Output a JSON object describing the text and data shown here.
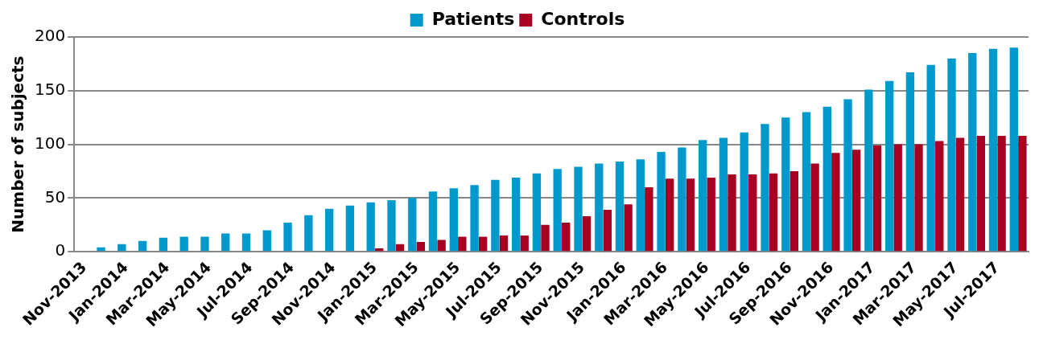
{
  "chart_data": {
    "type": "bar",
    "ylabel": "Number of subjects",
    "categories": [
      "Nov-2013",
      null,
      "Jan-2014",
      null,
      "Mar-2014",
      null,
      "May-2014",
      null,
      "Jul-2014",
      null,
      "Sep-2014",
      null,
      "Nov-2014",
      null,
      "Jan-2015",
      null,
      "Mar-2015",
      null,
      "May-2015",
      null,
      "Jul-2015",
      null,
      "Sep-2015",
      null,
      "Nov-2015",
      null,
      "Jan-2016",
      null,
      "Mar-2016",
      null,
      "May-2016",
      null,
      "Jul-2016",
      null,
      "Sep-2016",
      null,
      "Nov-2016",
      null,
      "Jan-2017",
      null,
      "Mar-2017",
      null,
      "May-2017",
      null,
      "Jul-2017",
      null
    ],
    "series": [
      {
        "name": "Patients",
        "color": "#0099cc",
        "values": [
          null,
          4,
          7,
          10,
          13,
          14,
          14,
          17,
          17,
          20,
          27,
          34,
          40,
          43,
          46,
          48,
          50,
          56,
          59,
          62,
          67,
          69,
          73,
          77,
          79,
          82,
          84,
          86,
          93,
          97,
          104,
          106,
          111,
          119,
          125,
          130,
          135,
          142,
          151,
          159,
          167,
          174,
          180,
          185,
          189,
          190
        ]
      },
      {
        "name": "Controls",
        "color": "#a50021",
        "values": [
          0,
          0,
          0,
          0,
          0,
          0,
          0,
          0,
          0,
          0,
          0,
          0,
          0,
          null,
          3,
          7,
          9,
          11,
          14,
          14,
          15,
          15,
          25,
          27,
          33,
          39,
          44,
          60,
          68,
          68,
          69,
          72,
          72,
          73,
          75,
          82,
          92,
          95,
          99,
          100,
          100,
          103,
          106,
          108,
          108,
          108
        ]
      }
    ],
    "ylim": [
      0,
      200
    ],
    "yticks": [
      0,
      50,
      100,
      150,
      200
    ],
    "grid": "y",
    "legend": "top"
  }
}
